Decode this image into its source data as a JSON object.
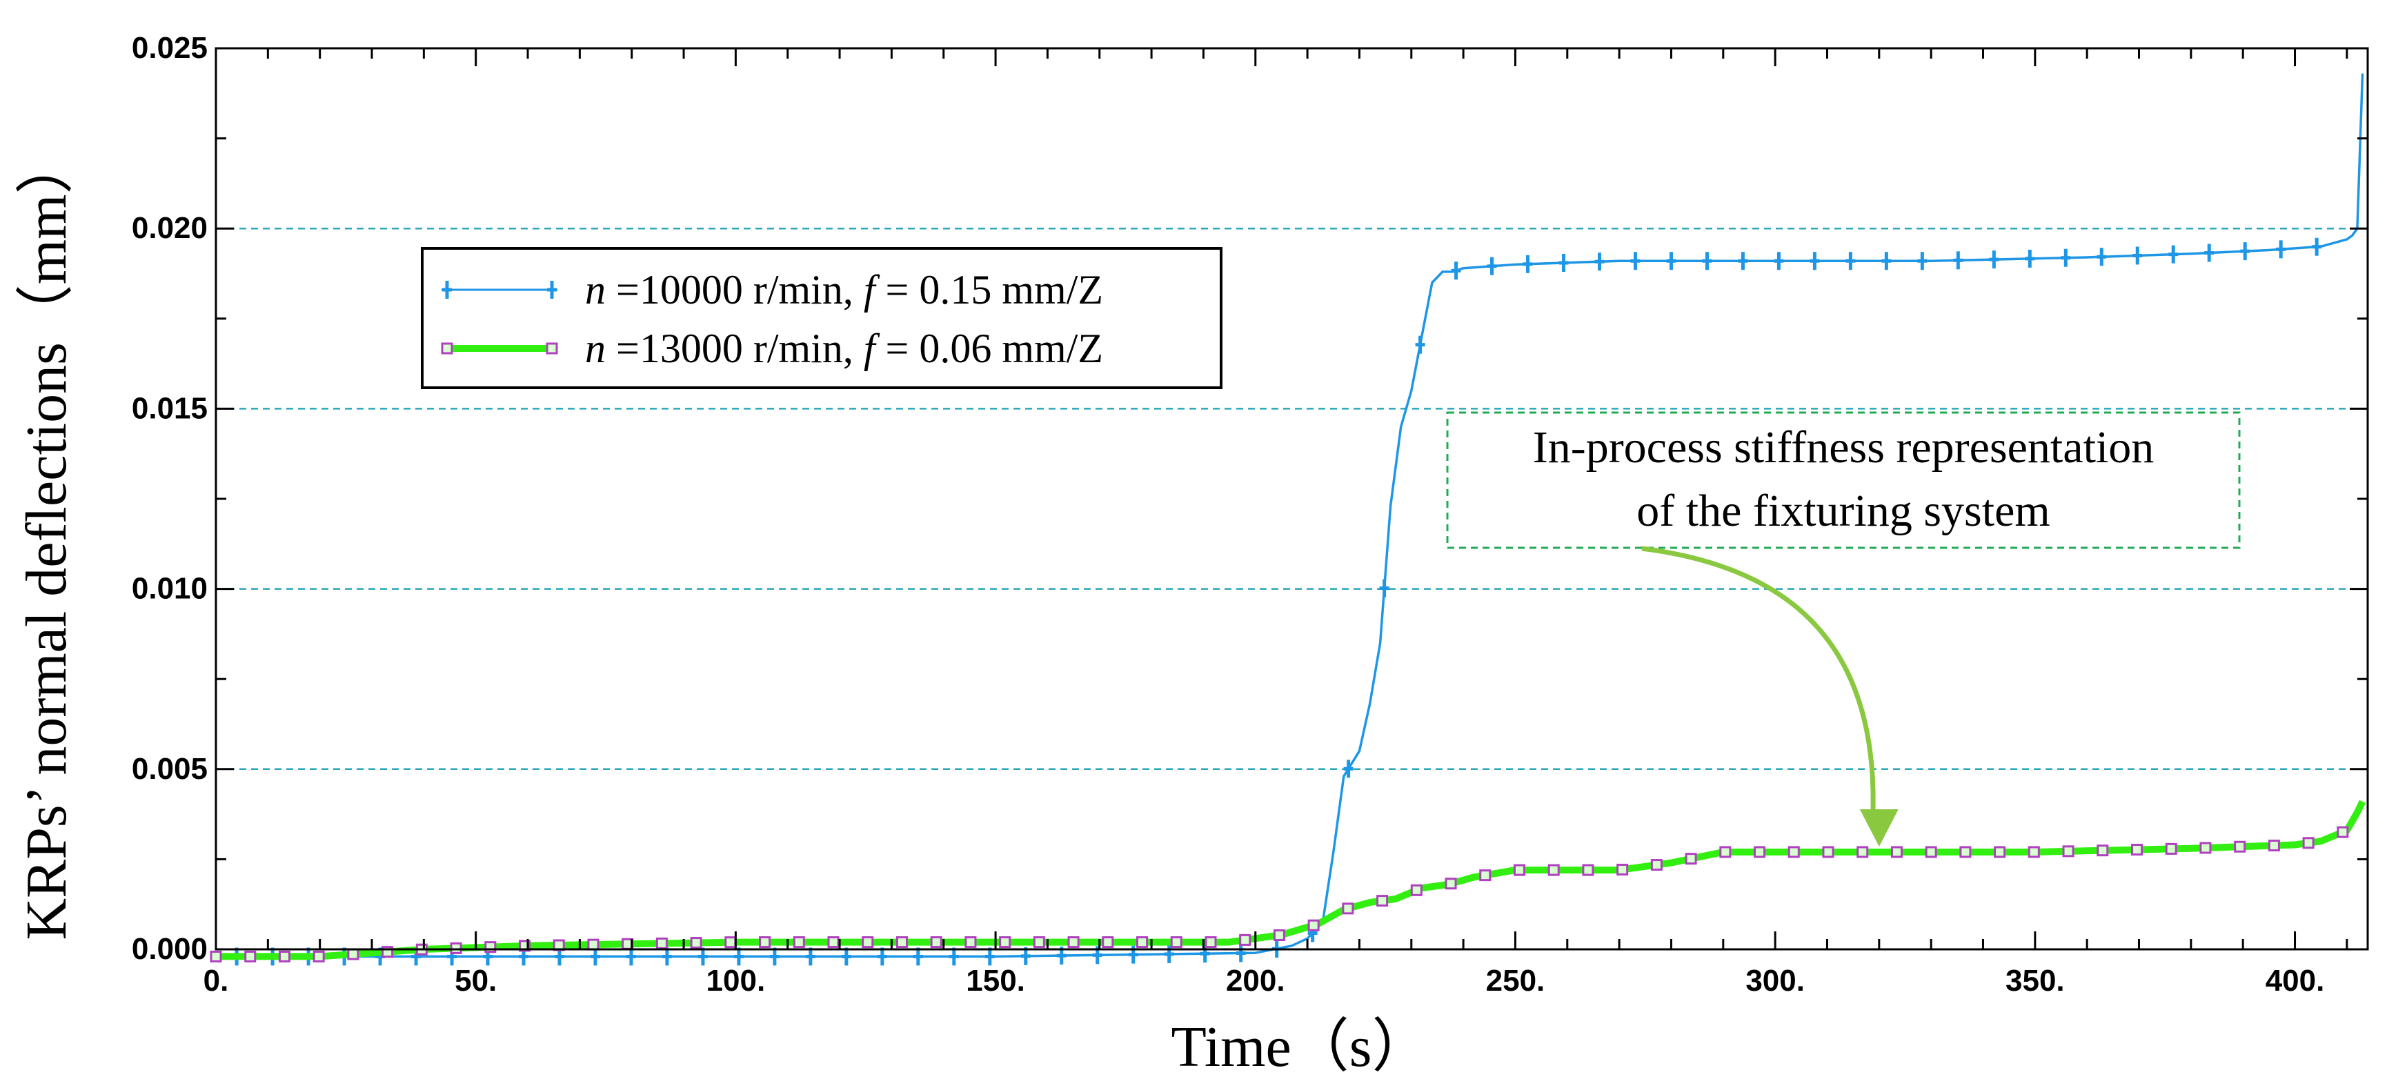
{
  "chart_data": {
    "type": "line",
    "title": "",
    "xlabel": "Time（s）",
    "ylabel": "KRPs’ normal deflections（mm）",
    "xlim": [
      0,
      414
    ],
    "ylim": [
      0,
      0.025
    ],
    "x_ticks": [
      {
        "value": 0,
        "label": "0."
      },
      {
        "value": 50,
        "label": "50."
      },
      {
        "value": 100,
        "label": "100."
      },
      {
        "value": 150,
        "label": "150."
      },
      {
        "value": 200,
        "label": "200."
      },
      {
        "value": 250,
        "label": "250."
      },
      {
        "value": 300,
        "label": "300."
      },
      {
        "value": 350,
        "label": "350."
      },
      {
        "value": 400,
        "label": "400."
      }
    ],
    "y_ticks": [
      {
        "value": 0,
        "label": "0.000"
      },
      {
        "value": 0.005,
        "label": "0.005"
      },
      {
        "value": 0.01,
        "label": "0.010"
      },
      {
        "value": 0.015,
        "label": "0.015"
      },
      {
        "value": 0.02,
        "label": "0.020"
      },
      {
        "value": 0.025,
        "label": "0.025"
      }
    ],
    "grid": "horizontal dashed",
    "legend_position": "top-left",
    "series": [
      {
        "name": "n =10000 r/min, f = 0.15 mm/Z",
        "legend_n": "n",
        "legend_mid": " =10000 r/min, ",
        "legend_f": "f",
        "legend_end": " = 0.15 mm/Z",
        "color": "#1e96e6",
        "marker": "cross",
        "x": [
          0,
          10,
          20,
          40,
          60,
          100,
          150,
          200,
          207,
          210,
          212,
          213,
          215,
          217,
          220,
          222,
          224,
          226,
          228,
          230,
          232,
          234,
          236,
          238,
          240,
          250,
          270,
          300,
          330,
          360,
          380,
          395,
          405,
          410,
          411,
          412,
          413
        ],
        "y": [
          -0.0002,
          -0.0002,
          -0.0002,
          -0.0002,
          -0.0002,
          -0.0002,
          -0.0002,
          -0.0001,
          0.0001,
          0.0003,
          0.0006,
          0.0008,
          0.0027,
          0.0048,
          0.0055,
          0.0068,
          0.0085,
          0.0123,
          0.0145,
          0.0155,
          0.017,
          0.0185,
          0.0188,
          0.0188,
          0.0189,
          0.019,
          0.0191,
          0.0191,
          0.0191,
          0.0192,
          0.0193,
          0.0194,
          0.0195,
          0.0197,
          0.0198,
          0.02,
          0.0243
        ]
      },
      {
        "name": "n =13000 r/min, f = 0.06 mm/Z",
        "legend_n": "n",
        "legend_mid": " =13000 r/min, ",
        "legend_f": "f",
        "legend_end": " = 0.06 mm/Z",
        "color": "#33ee11",
        "marker": "square",
        "marker_color": "#b040c0",
        "x": [
          0,
          20,
          40,
          60,
          100,
          150,
          195,
          205,
          212,
          217,
          222,
          227,
          232,
          237,
          242,
          250,
          260,
          270,
          280,
          290,
          300,
          320,
          350,
          380,
          400,
          405,
          410,
          412,
          413
        ],
        "y": [
          -0.0002,
          -0.0002,
          0.0,
          0.0001,
          0.0002,
          0.0002,
          0.0002,
          0.0004,
          0.0007,
          0.0011,
          0.0013,
          0.0014,
          0.0017,
          0.0018,
          0.002,
          0.0022,
          0.0022,
          0.0022,
          0.0024,
          0.0027,
          0.0027,
          0.0027,
          0.0027,
          0.0028,
          0.0029,
          0.003,
          0.0033,
          0.0038,
          0.0041
        ]
      }
    ],
    "annotation": {
      "line1": "In-process stiffness representation",
      "line2": "of the fixturing system",
      "box_color": "#22aa55",
      "arrow_color": "#8ac840",
      "points_to": {
        "x": 320,
        "y": 0.0027
      }
    }
  }
}
